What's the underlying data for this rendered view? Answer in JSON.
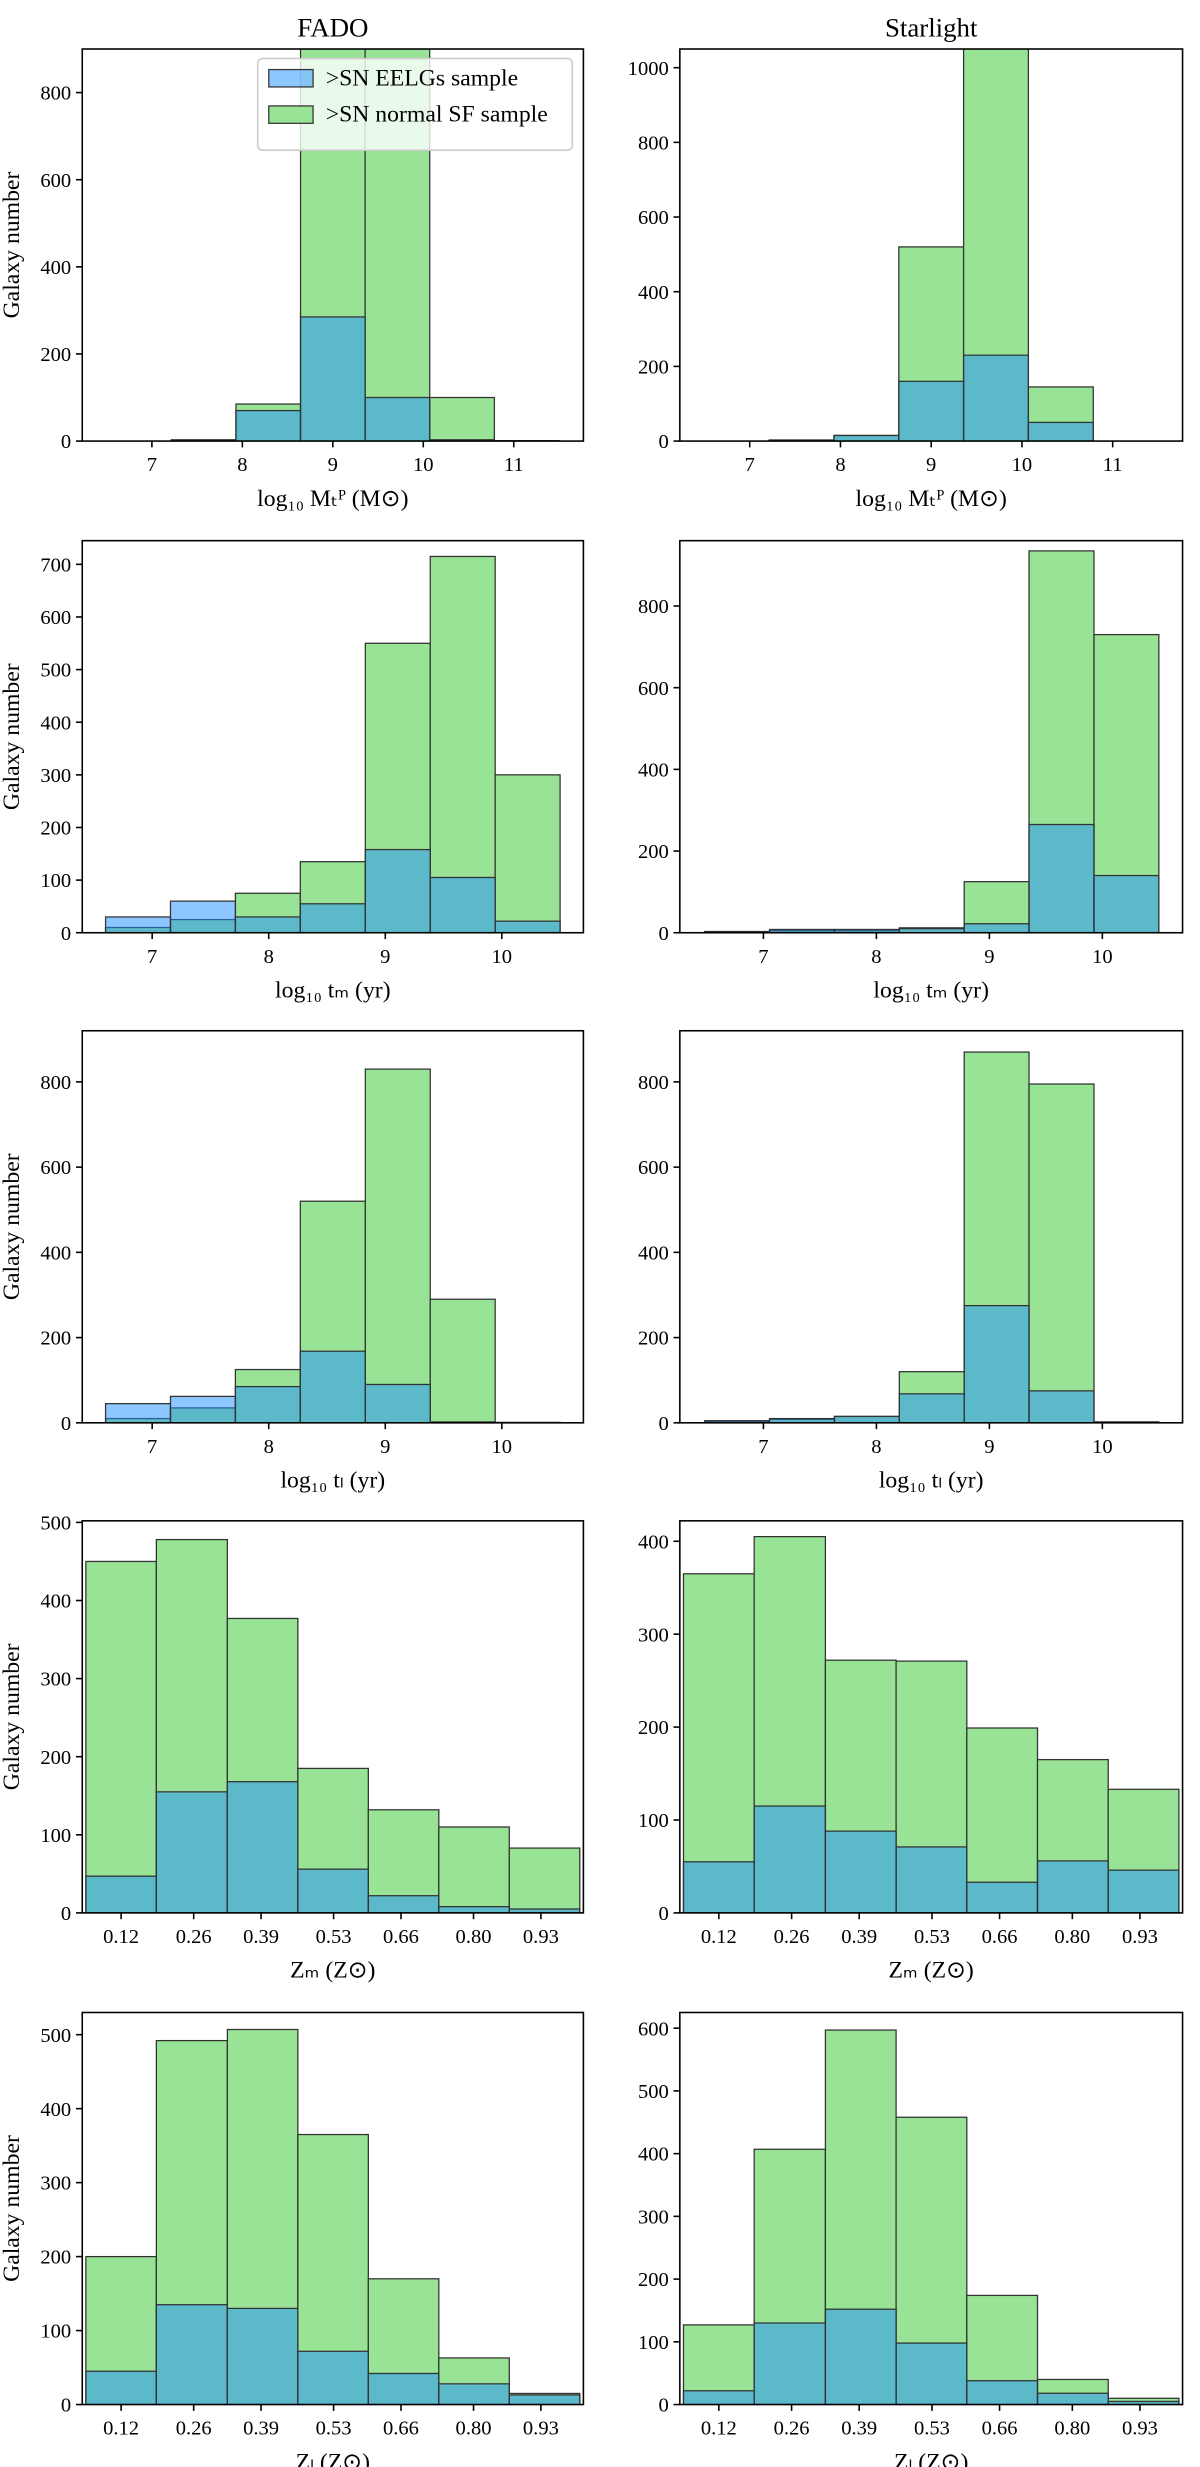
{
  "chart_data": [
    {
      "type": "histogram",
      "title": "FADO",
      "ylabel": "Galaxy number",
      "xlabel": "log₁₀ Mₜᴾ (M⊙)",
      "legend": "upper right",
      "bins": [
        6.5,
        7.214,
        7.929,
        8.643,
        9.357,
        10.071,
        10.786,
        11.5
      ],
      "series": [
        {
          "name": ">SN EELGs sample",
          "color": "#1e90ff",
          "opacity": 0.5,
          "values": [
            0,
            2,
            70,
            285,
            100,
            3,
            0
          ]
        },
        {
          "name": ">SN normal SF sample",
          "color": "#98e395",
          "opacity": 1,
          "values": [
            0,
            3,
            85,
            960,
            940,
            100,
            1
          ]
        }
      ],
      "xlim": [
        6.23,
        11.77
      ],
      "xticks": [
        7,
        8,
        9,
        10,
        11
      ],
      "ylim": [
        0,
        900
      ],
      "yticks": [
        0,
        200,
        400,
        600,
        800
      ]
    },
    {
      "type": "histogram",
      "title": "Starlight",
      "xlabel": "log₁₀ Mₜᴾ (M⊙)",
      "bins": [
        6.5,
        7.214,
        7.929,
        8.643,
        9.357,
        10.071,
        10.786,
        11.5
      ],
      "series": [
        {
          "color": "#1e90ff",
          "opacity": 0.5,
          "values": [
            0,
            2,
            15,
            160,
            230,
            50,
            0
          ]
        },
        {
          "color": "#98e395",
          "opacity": 1,
          "values": [
            0,
            3,
            15,
            520,
            1130,
            145,
            0
          ]
        }
      ],
      "xlim": [
        6.23,
        11.77
      ],
      "xticks": [
        7,
        8,
        9,
        10,
        11
      ],
      "ylim": [
        0,
        1050
      ],
      "yticks": [
        0,
        200,
        400,
        600,
        800,
        1000
      ]
    },
    {
      "type": "histogram",
      "ylabel": "Galaxy number",
      "xlabel": "log₁₀ tₘ (yr)",
      "bins": [
        6.6,
        7.157,
        7.714,
        8.271,
        8.829,
        9.386,
        9.943,
        10.5
      ],
      "series": [
        {
          "color": "#1e90ff",
          "opacity": 0.5,
          "values": [
            30,
            60,
            30,
            55,
            158,
            105,
            22
          ]
        },
        {
          "color": "#98e395",
          "opacity": 1,
          "values": [
            10,
            25,
            75,
            135,
            550,
            715,
            300
          ]
        }
      ],
      "xlim": [
        6.4,
        10.7
      ],
      "xticks": [
        7,
        8,
        9,
        10
      ],
      "ylim": [
        0,
        745
      ],
      "yticks": [
        0,
        100,
        200,
        300,
        400,
        500,
        600,
        700
      ]
    },
    {
      "type": "histogram",
      "xlabel": "log₁₀ tₘ (yr)",
      "bins": [
        6.48,
        7.054,
        7.629,
        8.203,
        8.777,
        9.351,
        9.926,
        10.5
      ],
      "series": [
        {
          "color": "#1e90ff",
          "opacity": 0.5,
          "values": [
            3,
            8,
            8,
            10,
            22,
            265,
            140
          ]
        },
        {
          "color": "#98e395",
          "opacity": 1,
          "values": [
            2,
            5,
            5,
            12,
            125,
            935,
            730
          ]
        }
      ],
      "xlim": [
        6.26,
        10.71
      ],
      "xticks": [
        7,
        8,
        9,
        10
      ],
      "ylim": [
        0,
        960
      ],
      "yticks": [
        0,
        200,
        400,
        600,
        800
      ]
    },
    {
      "type": "histogram",
      "ylabel": "Galaxy number",
      "xlabel": "log₁₀ tₗ (yr)",
      "bins": [
        6.6,
        7.157,
        7.714,
        8.271,
        8.829,
        9.386,
        9.943,
        10.5
      ],
      "series": [
        {
          "color": "#1e90ff",
          "opacity": 0.5,
          "values": [
            45,
            62,
            85,
            168,
            90,
            2,
            0
          ]
        },
        {
          "color": "#98e395",
          "opacity": 1,
          "values": [
            10,
            35,
            125,
            520,
            830,
            290,
            1
          ]
        }
      ],
      "xlim": [
        6.4,
        10.7
      ],
      "xticks": [
        7,
        8,
        9,
        10
      ],
      "ylim": [
        0,
        920
      ],
      "yticks": [
        0,
        200,
        400,
        600,
        800
      ]
    },
    {
      "type": "histogram",
      "xlabel": "log₁₀ tₗ (yr)",
      "bins": [
        6.48,
        7.054,
        7.629,
        8.203,
        8.777,
        9.351,
        9.926,
        10.5
      ],
      "series": [
        {
          "color": "#1e90ff",
          "opacity": 0.5,
          "values": [
            5,
            10,
            15,
            68,
            275,
            75,
            2
          ]
        },
        {
          "color": "#98e395",
          "opacity": 1,
          "values": [
            3,
            8,
            15,
            120,
            870,
            795,
            2
          ]
        }
      ],
      "xlim": [
        6.26,
        10.71
      ],
      "xticks": [
        7,
        8,
        9,
        10
      ],
      "ylim": [
        0,
        920
      ],
      "yticks": [
        0,
        200,
        400,
        600,
        800
      ]
    },
    {
      "type": "histogram",
      "ylabel": "Galaxy number",
      "xlabel": "Zₘ (Z⊙)",
      "bins": [
        0.052,
        0.188,
        0.325,
        0.461,
        0.597,
        0.733,
        0.869,
        1.005
      ],
      "series": [
        {
          "color": "#1e90ff",
          "opacity": 0.5,
          "values": [
            47,
            155,
            168,
            56,
            22,
            8,
            5
          ]
        },
        {
          "color": "#98e395",
          "opacity": 1,
          "values": [
            450,
            478,
            377,
            185,
            132,
            110,
            83
          ]
        }
      ],
      "xlim": [
        0.045,
        1.012
      ],
      "xticks": [
        0.12,
        0.26,
        0.39,
        0.53,
        0.66,
        {
          "value": 0.8,
          "label": "0.80"
        },
        0.93
      ],
      "ylim": [
        0,
        502
      ],
      "yticks": [
        0,
        100,
        200,
        300,
        400,
        500
      ]
    },
    {
      "type": "histogram",
      "xlabel": "Zₘ (Z⊙)",
      "bins": [
        0.052,
        0.188,
        0.325,
        0.461,
        0.597,
        0.733,
        0.869,
        1.005
      ],
      "series": [
        {
          "color": "#1e90ff",
          "opacity": 0.5,
          "values": [
            55,
            115,
            88,
            71,
            33,
            56,
            46
          ]
        },
        {
          "color": "#98e395",
          "opacity": 1,
          "values": [
            365,
            405,
            272,
            271,
            199,
            165,
            133
          ]
        }
      ],
      "xlim": [
        0.045,
        1.012
      ],
      "xticks": [
        0.12,
        0.26,
        0.39,
        0.53,
        0.66,
        {
          "value": 0.8,
          "label": "0.80"
        },
        0.93
      ],
      "ylim": [
        0,
        422
      ],
      "yticks": [
        0,
        100,
        200,
        300,
        400
      ]
    },
    {
      "type": "histogram",
      "ylabel": "Galaxy number",
      "xlabel": "Zₗ (Z⊙)",
      "bins": [
        0.052,
        0.188,
        0.325,
        0.461,
        0.597,
        0.733,
        0.869,
        1.005
      ],
      "series": [
        {
          "color": "#1e90ff",
          "opacity": 0.5,
          "values": [
            45,
            135,
            130,
            72,
            42,
            28,
            13
          ]
        },
        {
          "color": "#98e395",
          "opacity": 1,
          "values": [
            200,
            492,
            507,
            365,
            170,
            63,
            15
          ]
        }
      ],
      "xlim": [
        0.045,
        1.012
      ],
      "xticks": [
        0.12,
        0.26,
        0.39,
        0.53,
        0.66,
        {
          "value": 0.8,
          "label": "0.80"
        },
        0.93
      ],
      "ylim": [
        0,
        530
      ],
      "yticks": [
        0,
        100,
        200,
        300,
        400,
        500
      ]
    },
    {
      "type": "histogram",
      "xlabel": "Zₗ (Z⊙)",
      "bins": [
        0.052,
        0.188,
        0.325,
        0.461,
        0.597,
        0.733,
        0.869,
        1.005
      ],
      "series": [
        {
          "color": "#1e90ff",
          "opacity": 0.5,
          "values": [
            22,
            130,
            152,
            98,
            38,
            18,
            5
          ]
        },
        {
          "color": "#98e395",
          "opacity": 1,
          "values": [
            127,
            407,
            597,
            458,
            174,
            40,
            10
          ]
        }
      ],
      "xlim": [
        0.045,
        1.012
      ],
      "xticks": [
        0.12,
        0.26,
        0.39,
        0.53,
        0.66,
        {
          "value": 0.8,
          "label": "0.80"
        },
        0.93
      ],
      "ylim": [
        0,
        625
      ],
      "yticks": [
        0,
        100,
        200,
        300,
        400,
        500,
        600
      ]
    }
  ]
}
